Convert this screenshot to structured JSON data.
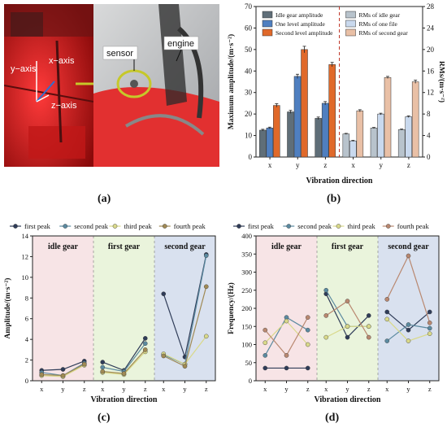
{
  "photo": {
    "left_labels": {
      "y_axis": "y−axis",
      "x_axis": "x−axis",
      "z_axis": "z−axis"
    },
    "right_labels": {
      "sensor": "sensor",
      "engine": "engine"
    }
  },
  "panel_labels": {
    "a": "(a)",
    "b": "(b)",
    "c": "(c)",
    "d": "(d)"
  },
  "chart_data": [
    {
      "panel": "b",
      "type": "bar",
      "xlabel": "Vibration direction",
      "ylabel": "Maximum amplitude/(m·s⁻²)",
      "y2label": "RMs/(m·s⁻²)",
      "ylim": [
        0,
        70
      ],
      "y2lim": [
        0,
        28
      ],
      "yticks": [
        0,
        10,
        20,
        30,
        40,
        50,
        60,
        70
      ],
      "y2ticks": [
        0,
        4,
        8,
        12,
        16,
        20,
        24,
        28
      ],
      "legend_position": "top",
      "categories": [
        "x",
        "y",
        "z"
      ],
      "groups": [
        {
          "name": "amplitude",
          "series": [
            {
              "name": "Idle gear amplitude",
              "color": "#5f6e78",
              "values": [
                12.5,
                21.0,
                18.0
              ],
              "errors": [
                0.4,
                0.7,
                0.6
              ]
            },
            {
              "name": "One level amplitude",
              "color": "#4f7fc0",
              "values": [
                13.5,
                37.5,
                25.0
              ],
              "errors": [
                0.4,
                1.0,
                0.8
              ]
            },
            {
              "name": "Second level amplitude",
              "color": "#e0692a",
              "values": [
                24.0,
                50.0,
                43.0
              ],
              "errors": [
                0.8,
                1.5,
                1.0
              ]
            }
          ]
        },
        {
          "name": "rms",
          "series": [
            {
              "name": "RMs of idle gear",
              "color": "#b8c3cc",
              "values": [
                4.3,
                5.4,
                5.1
              ],
              "errors": [
                0.1,
                0.1,
                0.1
              ]
            },
            {
              "name": "RMs of one file",
              "color": "#c9d9ee",
              "values": [
                3.0,
                8.0,
                7.5
              ],
              "errors": [
                0.1,
                0.15,
                0.15
              ]
            },
            {
              "name": "RMs of second gear",
              "color": "#e9c0a6",
              "values": [
                8.6,
                14.8,
                14.0
              ],
              "errors": [
                0.2,
                0.2,
                0.3
              ]
            }
          ]
        }
      ]
    },
    {
      "panel": "c",
      "type": "line",
      "xlabel": "Vibration direction",
      "ylabel": "Amplitude/(m·s⁻²)",
      "ylim": [
        0,
        14
      ],
      "yticks": [
        0,
        2,
        4,
        6,
        8,
        10,
        12,
        14
      ],
      "regions": [
        {
          "label": "idle gear",
          "color": "#f7e4e6"
        },
        {
          "label": "first gear",
          "color": "#eaf4dc"
        },
        {
          "label": "second gear",
          "color": "#d9e1ef"
        }
      ],
      "categories": [
        "x",
        "y",
        "z"
      ],
      "series": [
        {
          "name": "first peak",
          "color": "#2f3c58",
          "values": [
            [
              1.0,
              1.1,
              1.9
            ],
            [
              1.8,
              1.0,
              4.1
            ],
            [
              8.4,
              2.3,
              12.2
            ]
          ]
        },
        {
          "name": "second peak",
          "color": "#5b8aa0",
          "values": [
            [
              0.8,
              0.5,
              1.7
            ],
            [
              1.3,
              0.9,
              3.6
            ],
            [
              2.5,
              1.6,
              12.1
            ]
          ]
        },
        {
          "name": "third peak",
          "color": "#d9d98a",
          "values": [
            [
              0.5,
              0.4,
              1.5
            ],
            [
              0.8,
              0.6,
              2.8
            ],
            [
              2.6,
              1.6,
              4.3
            ]
          ]
        },
        {
          "name": "fourth peak",
          "color": "#a08a55",
          "values": [
            [
              0.6,
              0.5,
              1.6
            ],
            [
              0.9,
              0.7,
              3.0
            ],
            [
              2.4,
              1.4,
              9.1
            ]
          ]
        }
      ]
    },
    {
      "panel": "d",
      "type": "line",
      "xlabel": "Vibration direction",
      "ylabel": "Frequency/(Hz)",
      "ylim": [
        0,
        400
      ],
      "yticks": [
        0,
        50,
        100,
        150,
        200,
        250,
        300,
        350,
        400
      ],
      "regions": [
        {
          "label": "idle gear",
          "color": "#f7e4e6"
        },
        {
          "label": "first gear",
          "color": "#eaf4dc"
        },
        {
          "label": "second gear",
          "color": "#d9e1ef"
        }
      ],
      "categories": [
        "x",
        "y",
        "z"
      ],
      "series": [
        {
          "name": "first peak",
          "color": "#2f3c58",
          "values": [
            [
              35,
              35,
              35
            ],
            [
              240,
              120,
              180
            ],
            [
              190,
              140,
              190
            ]
          ]
        },
        {
          "name": "second peak",
          "color": "#5b8aa0",
          "values": [
            [
              70,
              175,
              140
            ],
            [
              250,
              150,
              150
            ],
            [
              110,
              155,
              145
            ]
          ]
        },
        {
          "name": "third peak",
          "color": "#d9d98a",
          "values": [
            [
              105,
              165,
              100
            ],
            [
              120,
              150,
              150
            ],
            [
              170,
              110,
              130
            ]
          ]
        },
        {
          "name": "fourth peak",
          "color": "#b98870",
          "values": [
            [
              140,
              70,
              175
            ],
            [
              180,
              220,
              120
            ],
            [
              225,
              345,
              160
            ]
          ]
        }
      ]
    }
  ]
}
